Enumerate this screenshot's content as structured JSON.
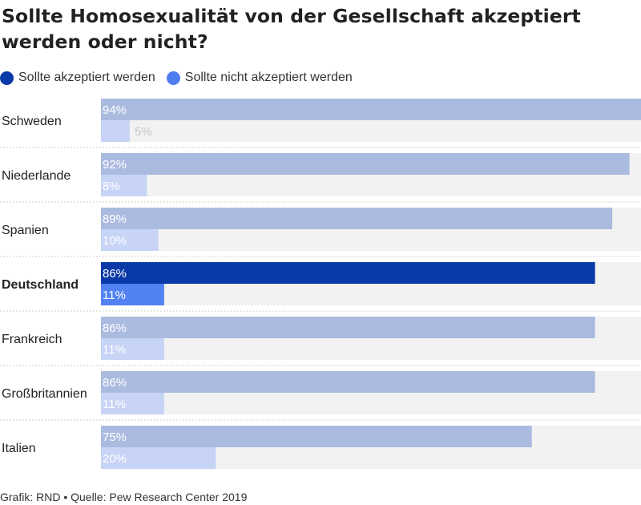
{
  "header": {
    "title": "Sollte Homosexualität von der Gesellschaft akzeptiert werden oder nicht?"
  },
  "legend": [
    {
      "label": "Sollte akzeptiert werden",
      "color": "#0a3aa8"
    },
    {
      "label": "Sollte nicht akzeptiert werden",
      "color": "#4f7df0"
    }
  ],
  "colors": {
    "accepted_highlight": "#0a3aa8",
    "not_accepted_highlight": "#5282f2",
    "accepted_muted": "#abbbe0",
    "not_accepted_muted": "#c7d4f6",
    "track": "#f2f2f2",
    "divider": "#cfcfcf"
  },
  "chart_data": {
    "type": "bar",
    "orientation": "horizontal",
    "categories": [
      "Schweden",
      "Niederlande",
      "Spanien",
      "Deutschland",
      "Frankreich",
      "Großbritannien",
      "Italien"
    ],
    "series": [
      {
        "name": "Sollte akzeptiert werden",
        "values": [
          94,
          92,
          89,
          86,
          86,
          86,
          75
        ]
      },
      {
        "name": "Sollte nicht akzeptiert werden",
        "values": [
          5,
          8,
          10,
          11,
          11,
          11,
          20
        ]
      }
    ],
    "value_labels": [
      [
        "94%",
        "92%",
        "89%",
        "86%",
        "86%",
        "86%",
        "75%"
      ],
      [
        "5%",
        "8%",
        "10%",
        "11%",
        "11%",
        "11%",
        "20%"
      ]
    ],
    "highlight": "Deutschland",
    "xlim": [
      0,
      94
    ],
    "unit": "%"
  },
  "footer": {
    "source": "Grafik: RND • Quelle: Pew Research Center 2019"
  }
}
